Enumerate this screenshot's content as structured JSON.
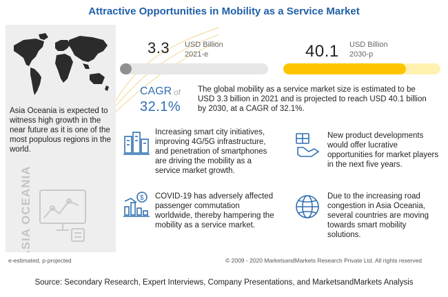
{
  "title": "Attractive Opportunities in Mobility as a Service Market",
  "left_panel": {
    "description": "Asia Oceania is expected to witness high growth in the near future as it is one of the most populous regions in the world.",
    "vertical_label": "ASIA OCEANIA",
    "map_icon": "world-map-icon",
    "chart_icon": "growth-chart-icon"
  },
  "stat_2021": {
    "value": "3.3",
    "unit": "USD Billion",
    "year": "2021-e",
    "bar_fill_fraction": 0.08
  },
  "stat_2030": {
    "value": "40.1",
    "unit": "USD Billion",
    "year": "2030-p",
    "bar_fill_fraction": 0.78
  },
  "cagr": {
    "label": "CAGR",
    "of": "of",
    "value": "32.1%"
  },
  "summary": "The global mobility as a service market size is estimated to be USD 3.3 billion in 2021 and is projected to reach USD 40.1 billion by 2030, at a CAGR of 32.1%.",
  "facts": [
    {
      "icon": "smart-city-icon",
      "text": "Increasing smart city initiatives, improving 4G/5G infrastructure, and penetration of smartphones are driving the mobility as a service market growth."
    },
    {
      "icon": "new-product-icon",
      "text": "New product developments would offer lucrative opportunities for market players in the next five years."
    },
    {
      "icon": "covid-decline-icon",
      "text": "COVID-19 has adversely affected passenger commutation worldwide, thereby hampering the mobility as a service market."
    },
    {
      "icon": "globe-icon",
      "text": "Due to the increasing road congestion in Asia Oceania, several countries are moving towards smart mobility solutions."
    }
  ],
  "footer": {
    "left": "e-estimated, p-projected",
    "right": "© 2009 - 2020 MarketsandMarkets Research Private Ltd. All rights reserved"
  },
  "source": "Source: Secondary Research, Expert Interviews, Company Presentations, and MarketsandMarkets Analysis",
  "colors": {
    "title": "#1f5fa8",
    "cagr": "#2f6fb0",
    "bar_2021": "#8f8f8f",
    "bar_2030": "#ffc400",
    "icon_blue": "#2f6fb0"
  }
}
